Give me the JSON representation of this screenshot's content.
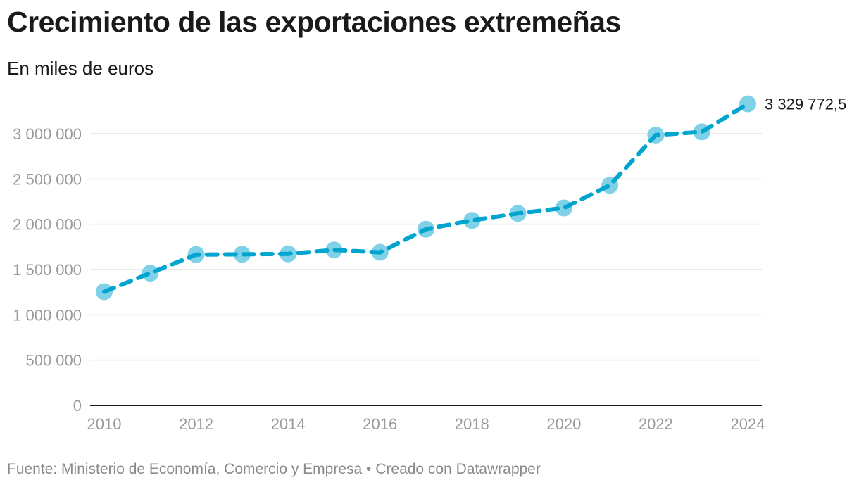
{
  "chart_data": {
    "type": "line",
    "title": "Crecimiento de las exportaciones extremeñas",
    "subtitle": "En miles de euros",
    "xlabel": "",
    "ylabel": "",
    "x": [
      2010,
      2011,
      2012,
      2013,
      2014,
      2015,
      2016,
      2017,
      2018,
      2019,
      2020,
      2021,
      2022,
      2023,
      2024
    ],
    "series": [
      {
        "values": [
          1255000,
          1460000,
          1665000,
          1668000,
          1673000,
          1716000,
          1690000,
          1945000,
          2042000,
          2120000,
          2180000,
          2430000,
          2985000,
          3020000,
          3329772.5
        ]
      }
    ],
    "xticks": [
      "2010",
      "2012",
      "2014",
      "2016",
      "2018",
      "2020",
      "2022",
      "2024"
    ],
    "yticks": [
      "0",
      "500 000",
      "1 000 000",
      "1 500 000",
      "2 000 000",
      "2 500 000",
      "3 000 000"
    ],
    "ylim": [
      0,
      3000000
    ],
    "grid": "horizontal",
    "last_value_label": "3 329 772,5",
    "colors": {
      "line": "#00a5cf",
      "marker": "#7fd1e8",
      "grid": "#e0e0e0",
      "axis": "#1a1a1a"
    }
  },
  "footer": "Fuente: Ministerio de Economía, Comercio y Empresa • Creado con Datawrapper"
}
